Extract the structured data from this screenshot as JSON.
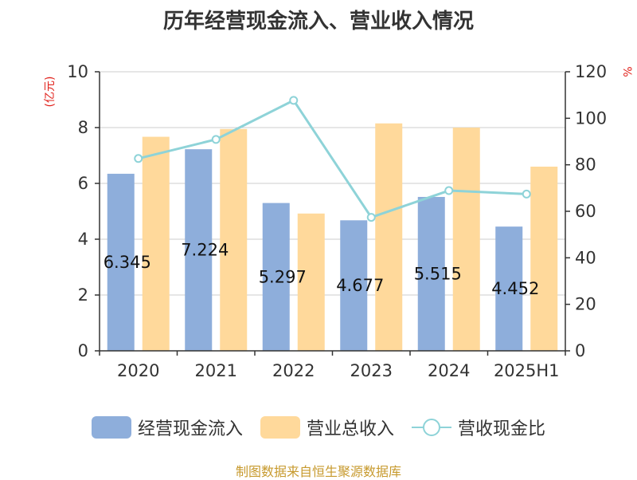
{
  "chart_data": {
    "type": "bar",
    "title": "历年经营现金流入、营业收入情况",
    "categories": [
      "2020",
      "2021",
      "2022",
      "2023",
      "2024",
      "2025H1"
    ],
    "left_unit": "(亿元)",
    "right_unit": "%",
    "left_axis": {
      "min": 0,
      "max": 10,
      "ticks": [
        "0",
        "2",
        "4",
        "6",
        "8",
        "10"
      ]
    },
    "right_axis": {
      "min": 0,
      "max": 120,
      "ticks": [
        "0",
        "20",
        "40",
        "60",
        "80",
        "100",
        "120"
      ]
    },
    "grid": true,
    "legend_position": "bottom",
    "series": [
      {
        "name": "经营现金流入",
        "kind": "bar",
        "axis": "left",
        "color": "#8eaedb",
        "values": [
          6.345,
          7.224,
          5.297,
          4.677,
          5.515,
          4.452
        ],
        "labels": [
          "6.345",
          "7.224",
          "5.297",
          "4.677",
          "5.515",
          "4.452"
        ]
      },
      {
        "name": "营业总收入",
        "kind": "bar",
        "axis": "left",
        "color": "#ffd99b",
        "values": [
          7.67,
          7.95,
          4.92,
          8.15,
          8.0,
          6.6
        ]
      },
      {
        "name": "营收现金比",
        "kind": "line",
        "axis": "right",
        "color": "#8ed3d8",
        "values": [
          82.7,
          90.9,
          107.7,
          57.4,
          68.9,
          67.4
        ]
      }
    ]
  },
  "footer": {
    "source": "制图数据来自恒生聚源数据库"
  }
}
